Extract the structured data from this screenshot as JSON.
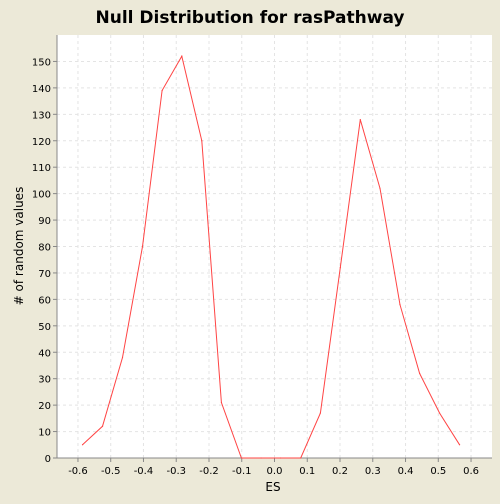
{
  "chart_data": {
    "type": "line",
    "title": "Null Distribution for rasPathway",
    "xlabel": "ES",
    "ylabel": "# of random values",
    "xlim": [
      -0.664,
      0.664
    ],
    "ylim": [
      0,
      160
    ],
    "x_ticks": [
      -0.6,
      -0.5,
      -0.4,
      -0.3,
      -0.2,
      -0.1,
      0.0,
      0.1,
      0.2,
      0.3,
      0.4,
      0.5,
      0.6
    ],
    "x_tick_labels": [
      "-0.6",
      "-0.5",
      "-0.4",
      "-0.3",
      "-0.2",
      "-0.1",
      "0.0",
      "0.1",
      "0.2",
      "0.3",
      "0.4",
      "0.5",
      "0.6"
    ],
    "y_ticks": [
      0,
      10,
      20,
      30,
      40,
      50,
      60,
      70,
      80,
      90,
      100,
      110,
      120,
      130,
      140,
      150
    ],
    "y_tick_labels": [
      "0",
      "10",
      "20",
      "30",
      "40",
      "50",
      "60",
      "70",
      "80",
      "90",
      "100",
      "110",
      "120",
      "130",
      "140",
      "150"
    ],
    "grid": true,
    "series": [
      {
        "color": "#ff4444",
        "x": [
          -0.586,
          -0.525,
          -0.464,
          -0.403,
          -0.343,
          -0.283,
          -0.222,
          -0.162,
          -0.101,
          -0.041,
          0.019,
          0.08,
          0.14,
          0.201,
          0.262,
          0.322,
          0.383,
          0.443,
          0.504,
          0.565
        ],
        "y": [
          5,
          12,
          38,
          80,
          139,
          152,
          120,
          21,
          0,
          0,
          0,
          0,
          17,
          72,
          128,
          102,
          58,
          32,
          17,
          5
        ]
      }
    ]
  },
  "colors": {
    "background": "#ece9d8",
    "plot_background": "#ffffff",
    "grid": "#e4e4e4",
    "axis": "#888888",
    "line": "#ff4444"
  }
}
